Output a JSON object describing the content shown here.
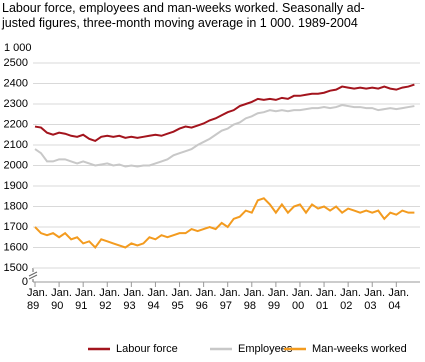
{
  "chart_data": {
    "type": "line",
    "title": "Labour force, employees and man-weeks worked. Seasonally ad-\njusted figures, three-month moving average in 1 000. 1989-2004",
    "y_unit": "1 000",
    "y_break_label": "0",
    "x": [
      1989,
      1989.25,
      1989.5,
      1989.75,
      1990,
      1990.25,
      1990.5,
      1990.75,
      1991,
      1991.25,
      1991.5,
      1991.75,
      1992,
      1992.25,
      1992.5,
      1992.75,
      1993,
      1993.25,
      1993.5,
      1993.75,
      1994,
      1994.25,
      1994.5,
      1994.75,
      1995,
      1995.25,
      1995.5,
      1995.75,
      1996,
      1996.25,
      1996.5,
      1996.75,
      1997,
      1997.25,
      1997.5,
      1997.75,
      1998,
      1998.25,
      1998.5,
      1998.75,
      1999,
      1999.25,
      1999.5,
      1999.75,
      2000,
      2000.25,
      2000.5,
      2000.75,
      2001,
      2001.25,
      2001.5,
      2001.75,
      2002,
      2002.25,
      2002.5,
      2002.75,
      2003,
      2003.25,
      2003.5,
      2003.75,
      2004,
      2004.25,
      2004.5,
      2004.75
    ],
    "series": [
      {
        "name": "Labour force",
        "color": "#a3141d",
        "values": [
          2190,
          2185,
          2160,
          2150,
          2160,
          2155,
          2145,
          2140,
          2150,
          2130,
          2120,
          2140,
          2145,
          2140,
          2145,
          2135,
          2140,
          2135,
          2140,
          2145,
          2150,
          2145,
          2155,
          2165,
          2180,
          2190,
          2185,
          2195,
          2205,
          2220,
          2230,
          2245,
          2260,
          2270,
          2290,
          2300,
          2310,
          2325,
          2320,
          2325,
          2320,
          2330,
          2325,
          2340,
          2340,
          2345,
          2350,
          2350,
          2355,
          2365,
          2370,
          2385,
          2380,
          2375,
          2380,
          2375,
          2380,
          2375,
          2385,
          2375,
          2370,
          2380,
          2385,
          2395
        ]
      },
      {
        "name": "Employees",
        "color": "#c8c8c8",
        "values": [
          2080,
          2060,
          2020,
          2020,
          2030,
          2030,
          2020,
          2010,
          2020,
          2010,
          2000,
          2005,
          2010,
          2000,
          2005,
          1995,
          2000,
          1995,
          2000,
          2000,
          2010,
          2020,
          2030,
          2050,
          2060,
          2070,
          2080,
          2100,
          2115,
          2130,
          2150,
          2170,
          2180,
          2200,
          2210,
          2230,
          2240,
          2255,
          2260,
          2270,
          2265,
          2270,
          2265,
          2270,
          2270,
          2275,
          2280,
          2280,
          2285,
          2280,
          2285,
          2295,
          2290,
          2285,
          2285,
          2280,
          2280,
          2270,
          2275,
          2280,
          2275,
          2280,
          2285,
          2290
        ]
      },
      {
        "name": "Man-weeks worked",
        "color": "#f39b1f",
        "values": [
          1700,
          1670,
          1660,
          1670,
          1650,
          1670,
          1640,
          1650,
          1620,
          1630,
          1600,
          1640,
          1630,
          1620,
          1610,
          1600,
          1620,
          1610,
          1620,
          1650,
          1640,
          1660,
          1650,
          1660,
          1670,
          1670,
          1690,
          1680,
          1690,
          1700,
          1690,
          1720,
          1700,
          1740,
          1750,
          1780,
          1770,
          1830,
          1840,
          1810,
          1770,
          1810,
          1770,
          1800,
          1810,
          1770,
          1810,
          1790,
          1800,
          1780,
          1800,
          1770,
          1790,
          1780,
          1770,
          1780,
          1770,
          1780,
          1740,
          1770,
          1760,
          1780,
          1770,
          1770
        ]
      }
    ],
    "xlim": [
      1989,
      2004.9
    ],
    "xticks": [
      {
        "value": 1989,
        "label": "Jan.\n89"
      },
      {
        "value": 1990,
        "label": "Jan.\n90"
      },
      {
        "value": 1991,
        "label": "Jan.\n91"
      },
      {
        "value": 1992,
        "label": "Jan.\n92"
      },
      {
        "value": 1993,
        "label": "Jan.\n93"
      },
      {
        "value": 1994,
        "label": "Jan.\n94"
      },
      {
        "value": 1995,
        "label": "Jan.\n95"
      },
      {
        "value": 1996,
        "label": "Jan.\n96"
      },
      {
        "value": 1997,
        "label": "Jan.\n97"
      },
      {
        "value": 1998,
        "label": "Jan.\n98"
      },
      {
        "value": 1999,
        "label": "Jan.\n99"
      },
      {
        "value": 2000,
        "label": "Jan.\n00"
      },
      {
        "value": 2001,
        "label": "Jan.\n01"
      },
      {
        "value": 2002,
        "label": "Jan.\n02"
      },
      {
        "value": 2003,
        "label": "Jan.\n03"
      },
      {
        "value": 2004,
        "label": "Jan.\n04"
      }
    ],
    "ylim": [
      1500,
      2500
    ],
    "yticks": [
      1500,
      1600,
      1700,
      1800,
      1900,
      2000,
      2100,
      2200,
      2300,
      2400,
      2500
    ],
    "grid": true
  }
}
